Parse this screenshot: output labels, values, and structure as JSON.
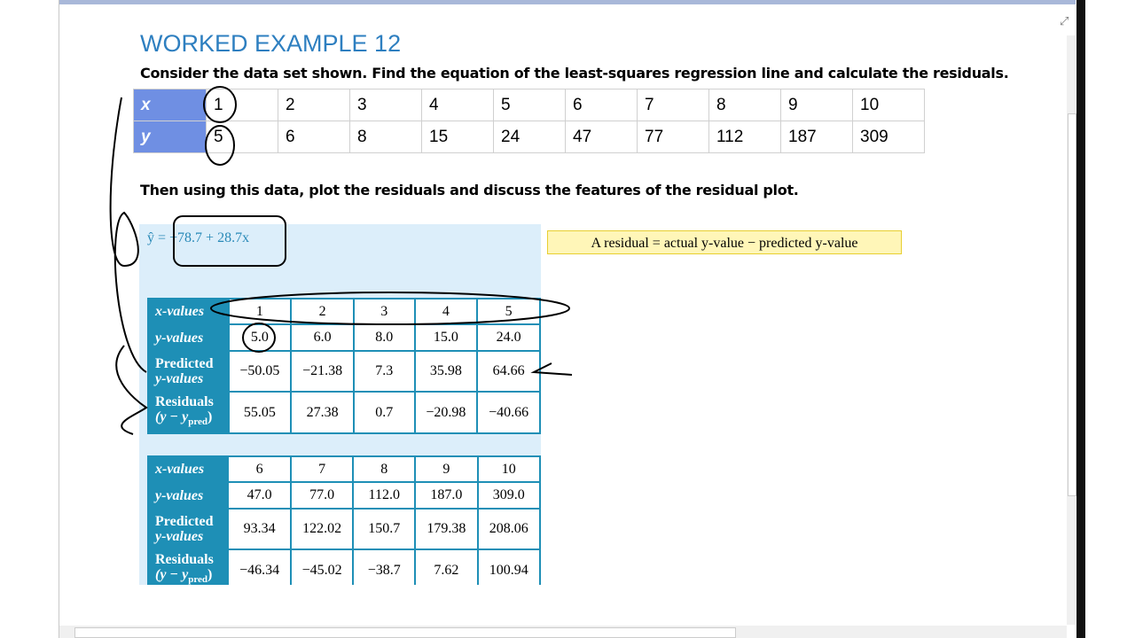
{
  "header": {
    "title": "WORKED EXAMPLE 12",
    "question": "Consider the data set shown. Find the equation of the least-squares regression line and calculate the residuals."
  },
  "data_table": {
    "rows": [
      [
        "x",
        "1",
        "2",
        "3",
        "4",
        "5",
        "6",
        "7",
        "8",
        "9",
        "10"
      ],
      [
        "y",
        "5",
        "6",
        "8",
        "15",
        "24",
        "47",
        "77",
        "112",
        "187",
        "309"
      ]
    ]
  },
  "instruction": "Then using this data, plot the residuals and discuss the features of the residual plot.",
  "solution": {
    "equation": "ŷ = −78.7 + 28.7x",
    "residual_note": "A residual = actual y-value − predicted y-value",
    "row_headers": {
      "x": "x-values",
      "y": "y-values",
      "predicted": "Predicted",
      "predicted_2": "y-values",
      "residuals": "Residuals",
      "residuals_formula": "(y − y",
      "residuals_sub": "pred",
      "residuals_close": ")"
    },
    "tables": [
      {
        "x": [
          "1",
          "2",
          "3",
          "4",
          "5"
        ],
        "y": [
          "5.0",
          "6.0",
          "8.0",
          "15.0",
          "24.0"
        ],
        "predicted": [
          "−50.05",
          "−21.38",
          "7.3",
          "35.98",
          "64.66"
        ],
        "residuals": [
          "55.05",
          "27.38",
          "0.7",
          "−20.98",
          "−40.66"
        ]
      },
      {
        "x": [
          "6",
          "7",
          "8",
          "9",
          "10"
        ],
        "y": [
          "47.0",
          "77.0",
          "112.0",
          "187.0",
          "309.0"
        ],
        "predicted": [
          "93.34",
          "122.02",
          "150.7",
          "179.38",
          "208.06"
        ],
        "residuals": [
          "−46.34",
          "−45.02",
          "−38.7",
          "7.62",
          "100.94"
        ]
      }
    ]
  }
}
